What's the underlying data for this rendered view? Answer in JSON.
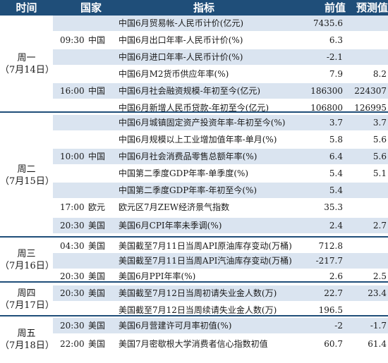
{
  "header": {
    "time": "时间",
    "country": "国家",
    "indicator": "指标",
    "previous": "前值",
    "forecast": "预测值"
  },
  "groups": [
    {
      "day": "周一",
      "date": "（7月14日）",
      "rows": [
        {
          "time": "",
          "country": "",
          "indicator": "中国6月贸易帐-人民币计价(亿元)",
          "previous": "7435.6",
          "forecast": "",
          "shaded": true
        },
        {
          "time": "09:30",
          "country": "中国",
          "indicator": "中国6月出口年率-人民币计价(%)",
          "previous": "6.3",
          "forecast": "",
          "shaded": false
        },
        {
          "time": "",
          "country": "",
          "indicator": "中国6月进口年率-人民币计价(%)",
          "previous": "-2.1",
          "forecast": "",
          "shaded": true
        },
        {
          "time": "",
          "country": "",
          "indicator": "中国6月M2货币供应年率(%)",
          "previous": "7.9",
          "forecast": "8.2",
          "shaded": false
        },
        {
          "time": "16:00",
          "country": "中国",
          "indicator": "中国6月社会融资规模-年初至今(亿元)",
          "previous": "186300",
          "forecast": "224307",
          "shaded": true
        },
        {
          "time": "",
          "country": "",
          "indicator": "中国6月新增人民币贷款-年初至今(亿元)",
          "previous": "106800",
          "forecast": "126995",
          "shaded": false
        }
      ]
    },
    {
      "day": "周二",
      "date": "（7月15日）",
      "rows": [
        {
          "time": "",
          "country": "",
          "indicator": "中国6月城镇固定资产投资年率-年初至今(%)",
          "previous": "3.7",
          "forecast": "3.7",
          "shaded": true
        },
        {
          "time": "",
          "country": "",
          "indicator": "中国6月规模以上工业增加值年率-单月(%)",
          "previous": "5.8",
          "forecast": "5.6",
          "shaded": false
        },
        {
          "time": "10:00",
          "country": "中国",
          "indicator": "中国6月社会消费品零售总额年率(%)",
          "previous": "6.4",
          "forecast": "5.6",
          "shaded": true
        },
        {
          "time": "",
          "country": "",
          "indicator": "中国第二季度GDP年率-单季度(%)",
          "previous": "5.4",
          "forecast": "5.1",
          "shaded": false
        },
        {
          "time": "",
          "country": "",
          "indicator": "中国第二季度GDP年率-年初至今(%)",
          "previous": "5.4",
          "forecast": "",
          "shaded": true
        },
        {
          "time": "17:00",
          "country": "欧元区",
          "indicator": "欧元区7月ZEW经济景气指数",
          "previous": "35.3",
          "forecast": "",
          "shaded": false
        },
        {
          "time": "20:30",
          "country": "美国",
          "indicator": "美国6月CPI年率未季调(%)",
          "previous": "2.4",
          "forecast": "2.7",
          "shaded": true
        }
      ]
    },
    {
      "day": "周三",
      "date": "（7月16日）",
      "rows": [
        {
          "time": "04:30",
          "country": "美国",
          "indicator": "美国截至7月11日当周API原油库存变动(万桶)",
          "previous": "712.8",
          "forecast": "",
          "shaded": false
        },
        {
          "time": "",
          "country": "",
          "indicator": "美国截至7月11日当周API汽油库存变动(万桶)",
          "previous": "-217.7",
          "forecast": "",
          "shaded": true
        },
        {
          "time": "20:30",
          "country": "美国",
          "indicator": "美国6月PPI年率(%)",
          "previous": "2.6",
          "forecast": "2.5",
          "shaded": false
        }
      ]
    },
    {
      "day": "周四",
      "date": "（7月17日）",
      "rows": [
        {
          "time": "20:30",
          "country": "美国",
          "indicator": "美国截至7月12日当周初请失业金人数(万)",
          "previous": "22.7",
          "forecast": "23.4",
          "shaded": true
        },
        {
          "time": "",
          "country": "",
          "indicator": "美国截至7月12日当周续请失业金人数(万)",
          "previous": "196.5",
          "forecast": "",
          "shaded": false
        }
      ]
    },
    {
      "day": "周五",
      "date": "（7月18日）",
      "rows": [
        {
          "time": "20:30",
          "country": "美国",
          "indicator": "美国6月营建许可月率初值(%)",
          "previous": "-2",
          "forecast": "-1.7",
          "shaded": true
        },
        {
          "time": "22:00",
          "country": "美国",
          "indicator": "美国7月密歇根大学消费者信心指数初值",
          "previous": "60.7",
          "forecast": "61.4",
          "shaded": false
        }
      ]
    }
  ]
}
